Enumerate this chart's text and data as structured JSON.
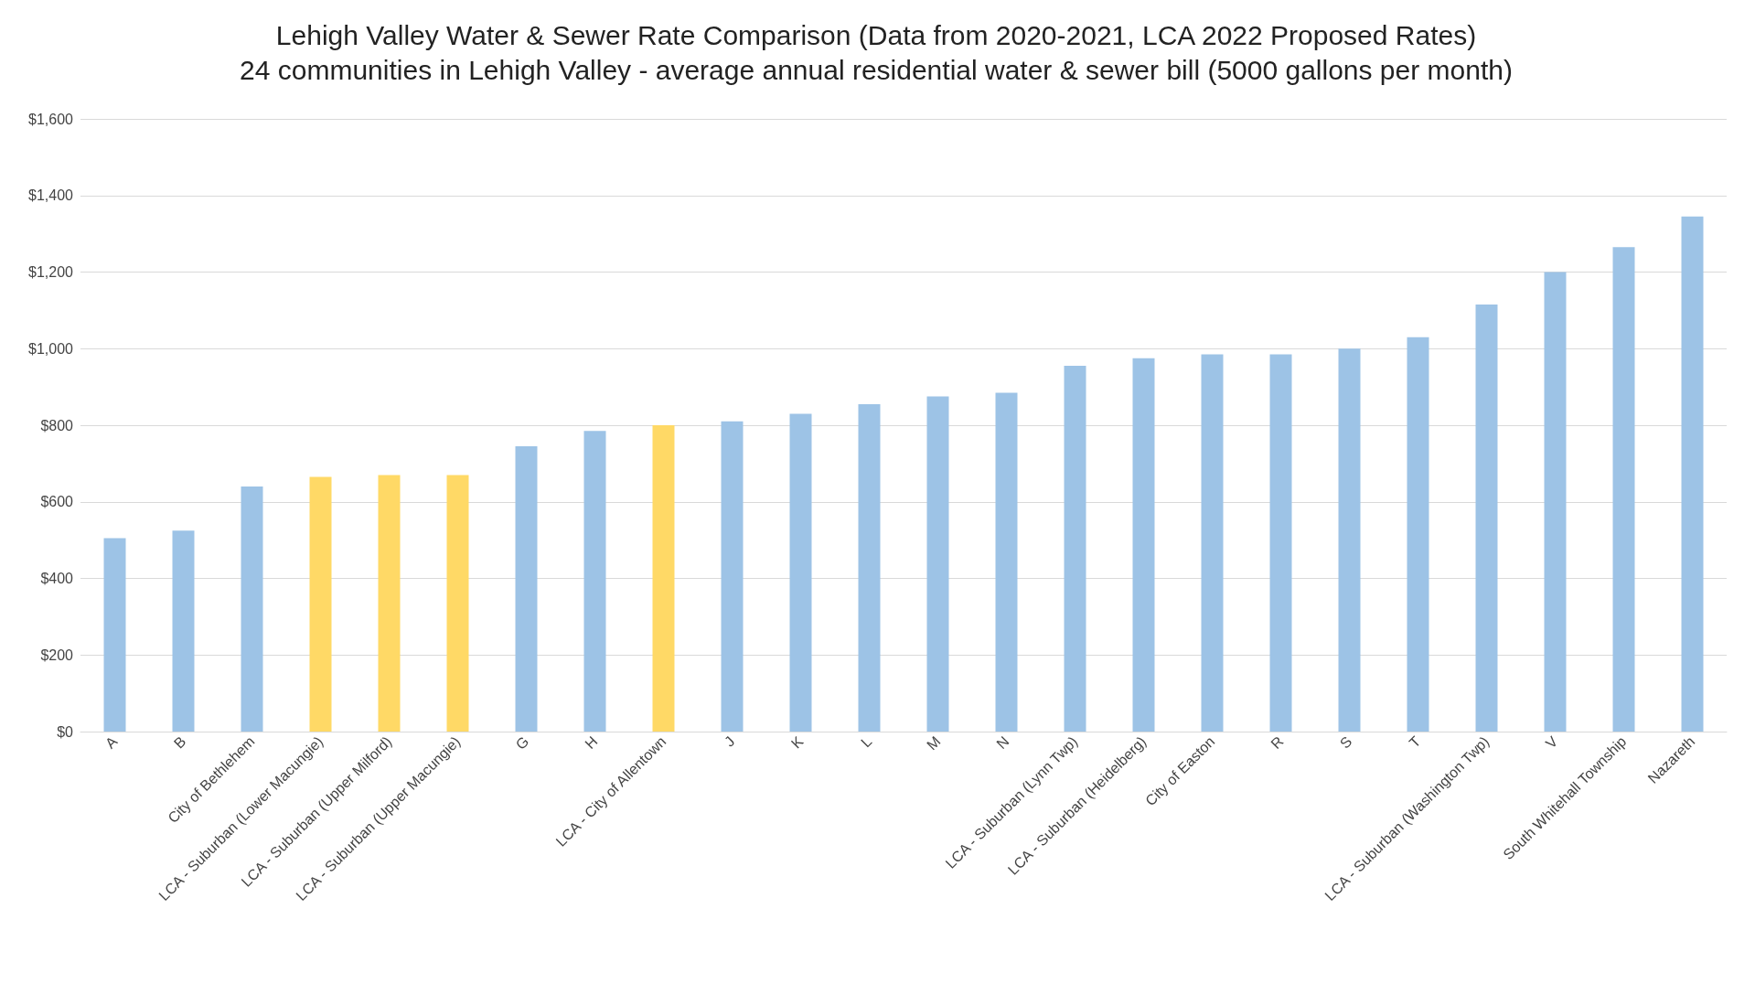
{
  "chart_data": {
    "type": "bar",
    "title": "Lehigh Valley Water & Sewer Rate Comparison (Data from 2020-2021, LCA 2022 Proposed Rates)",
    "subtitle": "24 communities in Lehigh Valley - average annual residential water & sewer bill (5000 gallons per month)",
    "categories": [
      "A",
      "B",
      "City of Bethlehem",
      "LCA - Suburban (Lower Macungie)",
      "LCA - Suburban (Upper Milford)",
      "LCA - Suburban (Upper Macungie)",
      "G",
      "H",
      "LCA - City of Allentown",
      "J",
      "K",
      "L",
      "M",
      "N",
      "LCA - Suburban (Lynn Twp)",
      "LCA - Suburban (Heidelberg)",
      "City of Easton",
      "R",
      "S",
      "T",
      "LCA - Suburban (Washington Twp)",
      "V",
      "South Whitehall Township",
      "Nazareth"
    ],
    "values": [
      505,
      525,
      640,
      665,
      670,
      670,
      745,
      785,
      800,
      810,
      830,
      855,
      875,
      885,
      955,
      975,
      985,
      985,
      1000,
      1030,
      1115,
      1200,
      1265,
      1345
    ],
    "colors": [
      "#9dc3e6",
      "#9dc3e6",
      "#9dc3e6",
      "#ffd966",
      "#ffd966",
      "#ffd966",
      "#9dc3e6",
      "#9dc3e6",
      "#ffd966",
      "#9dc3e6",
      "#9dc3e6",
      "#9dc3e6",
      "#9dc3e6",
      "#9dc3e6",
      "#9dc3e6",
      "#9dc3e6",
      "#9dc3e6",
      "#9dc3e6",
      "#9dc3e6",
      "#9dc3e6",
      "#9dc3e6",
      "#9dc3e6",
      "#9dc3e6",
      "#9dc3e6"
    ],
    "ylim": [
      0,
      1600
    ],
    "yticks": [
      {
        "value": 0,
        "label": "$0"
      },
      {
        "value": 200,
        "label": "$200"
      },
      {
        "value": 400,
        "label": "$400"
      },
      {
        "value": 600,
        "label": "$600"
      },
      {
        "value": 800,
        "label": "$800"
      },
      {
        "value": 1000,
        "label": "$1,000"
      },
      {
        "value": 1200,
        "label": "$1,200"
      },
      {
        "value": 1400,
        "label": "$1,400"
      },
      {
        "value": 1600,
        "label": "$1,600"
      }
    ],
    "grid": "y"
  }
}
